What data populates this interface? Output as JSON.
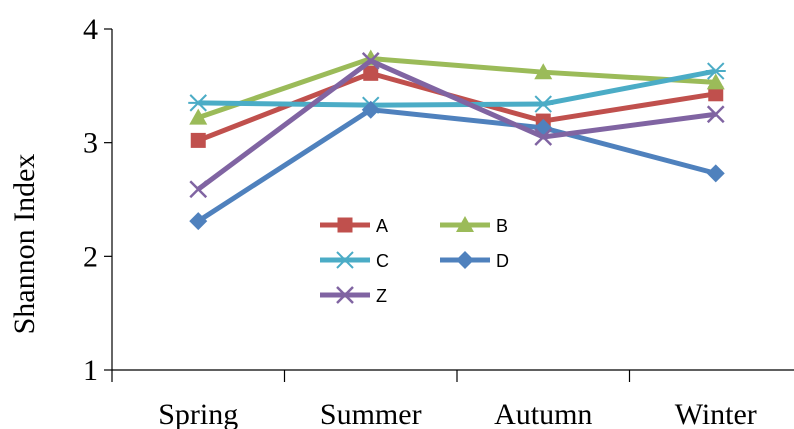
{
  "chart_data": {
    "type": "line",
    "title": "",
    "xlabel": "",
    "ylabel": "Shannon Index",
    "categories": [
      "Spring",
      "Summer",
      "Autumn",
      "Winter"
    ],
    "ylim": [
      1,
      4
    ],
    "yticks": [
      "1",
      "2",
      "3",
      "4"
    ],
    "grid": false,
    "legend_position": "lower-left inside",
    "series": [
      {
        "name": "A",
        "values": [
          3.02,
          3.61,
          3.19,
          3.43
        ],
        "color": "#c0504d",
        "marker": "square"
      },
      {
        "name": "B",
        "values": [
          3.22,
          3.74,
          3.62,
          3.53
        ],
        "color": "#9bbb59",
        "marker": "triangle"
      },
      {
        "name": "C",
        "values": [
          3.35,
          3.33,
          3.34,
          3.63
        ],
        "color": "#4bacc6",
        "marker": "asterisk"
      },
      {
        "name": "D",
        "values": [
          2.31,
          3.29,
          3.13,
          2.73
        ],
        "color": "#4f81bd",
        "marker": "diamond"
      },
      {
        "name": "Z",
        "values": [
          2.59,
          3.72,
          3.05,
          3.25
        ],
        "color": "#8064a2",
        "marker": "x"
      }
    ]
  }
}
